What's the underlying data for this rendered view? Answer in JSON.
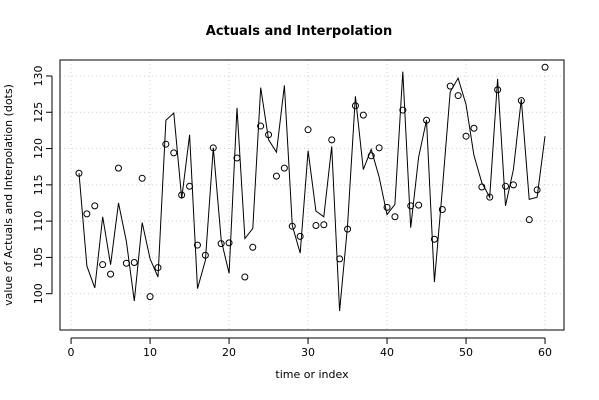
{
  "chart_data": {
    "type": "scatter",
    "title": "Actuals and Interpolation",
    "xlabel": "time or index",
    "ylabel": "value of Actuals and Interpolation (dots)",
    "xlim": [
      -1.4,
      62.4
    ],
    "ylim": [
      95.0,
      132.2
    ],
    "x_ticks": [
      0,
      10,
      20,
      30,
      40,
      50,
      60
    ],
    "y_ticks": [
      100,
      105,
      110,
      115,
      120,
      125,
      130
    ],
    "grid": true,
    "series": [
      {
        "style": "points",
        "x": [
          1,
          2,
          3,
          4,
          5,
          6,
          7,
          8,
          9,
          10,
          11,
          12,
          13,
          14,
          15,
          16,
          17,
          18,
          19,
          20,
          21,
          22,
          23,
          24,
          25,
          26,
          27,
          28,
          29,
          30,
          31,
          32,
          33,
          34,
          35,
          36,
          37,
          38,
          39,
          40,
          41,
          42,
          43,
          44,
          45,
          46,
          47,
          48,
          49,
          50,
          51,
          52,
          53,
          54,
          55,
          56,
          57,
          58,
          59,
          60
        ],
        "y": [
          116.6,
          111.0,
          112.1,
          104.0,
          102.7,
          117.3,
          104.2,
          104.3,
          115.9,
          99.6,
          103.6,
          120.6,
          119.4,
          113.6,
          114.8,
          106.7,
          105.3,
          120.1,
          106.9,
          107.0,
          118.7,
          102.3,
          106.4,
          123.1,
          121.9,
          116.2,
          117.3,
          109.3,
          107.9,
          122.6,
          109.4,
          109.5,
          121.2,
          104.8,
          108.9,
          125.9,
          124.6,
          119.0,
          120.1,
          111.9,
          110.6,
          125.3,
          112.1,
          112.2,
          123.9,
          107.5,
          111.6,
          128.6,
          127.3,
          121.7,
          122.8,
          114.7,
          113.3,
          128.1,
          114.8,
          115.0,
          126.6,
          110.2,
          114.3,
          131.2
        ]
      },
      {
        "style": "line",
        "x": [
          1,
          2,
          3,
          4,
          5,
          6,
          7,
          8,
          9,
          10,
          11,
          12,
          13,
          14,
          15,
          16,
          17,
          18,
          19,
          20,
          21,
          22,
          23,
          24,
          25,
          26,
          27,
          28,
          29,
          30,
          31,
          32,
          33,
          34,
          35,
          36,
          37,
          38,
          39,
          40,
          41,
          42,
          43,
          44,
          45,
          46,
          47,
          48,
          49,
          50,
          51,
          52,
          53,
          54,
          55,
          56,
          57,
          58,
          59,
          60
        ],
        "y": [
          116.6,
          103.8,
          100.8,
          110.6,
          104.0,
          112.5,
          107.2,
          99.0,
          109.8,
          104.8,
          102.3,
          123.9,
          124.9,
          113.1,
          121.9,
          100.7,
          104.6,
          120.1,
          107.4,
          102.8,
          125.6,
          107.6,
          109.0,
          128.4,
          121.2,
          119.5,
          128.7,
          109.4,
          105.6,
          119.7,
          111.4,
          110.6,
          120.3,
          97.6,
          109.3,
          127.2,
          117.1,
          119.9,
          116.1,
          110.9,
          112.3,
          130.6,
          109.1,
          118.8,
          123.9,
          101.6,
          114.3,
          127.8,
          129.7,
          126.1,
          119.1,
          115.3,
          113.3,
          129.6,
          112.1,
          117.1,
          126.8,
          113.0,
          113.3,
          121.7
        ]
      }
    ]
  }
}
